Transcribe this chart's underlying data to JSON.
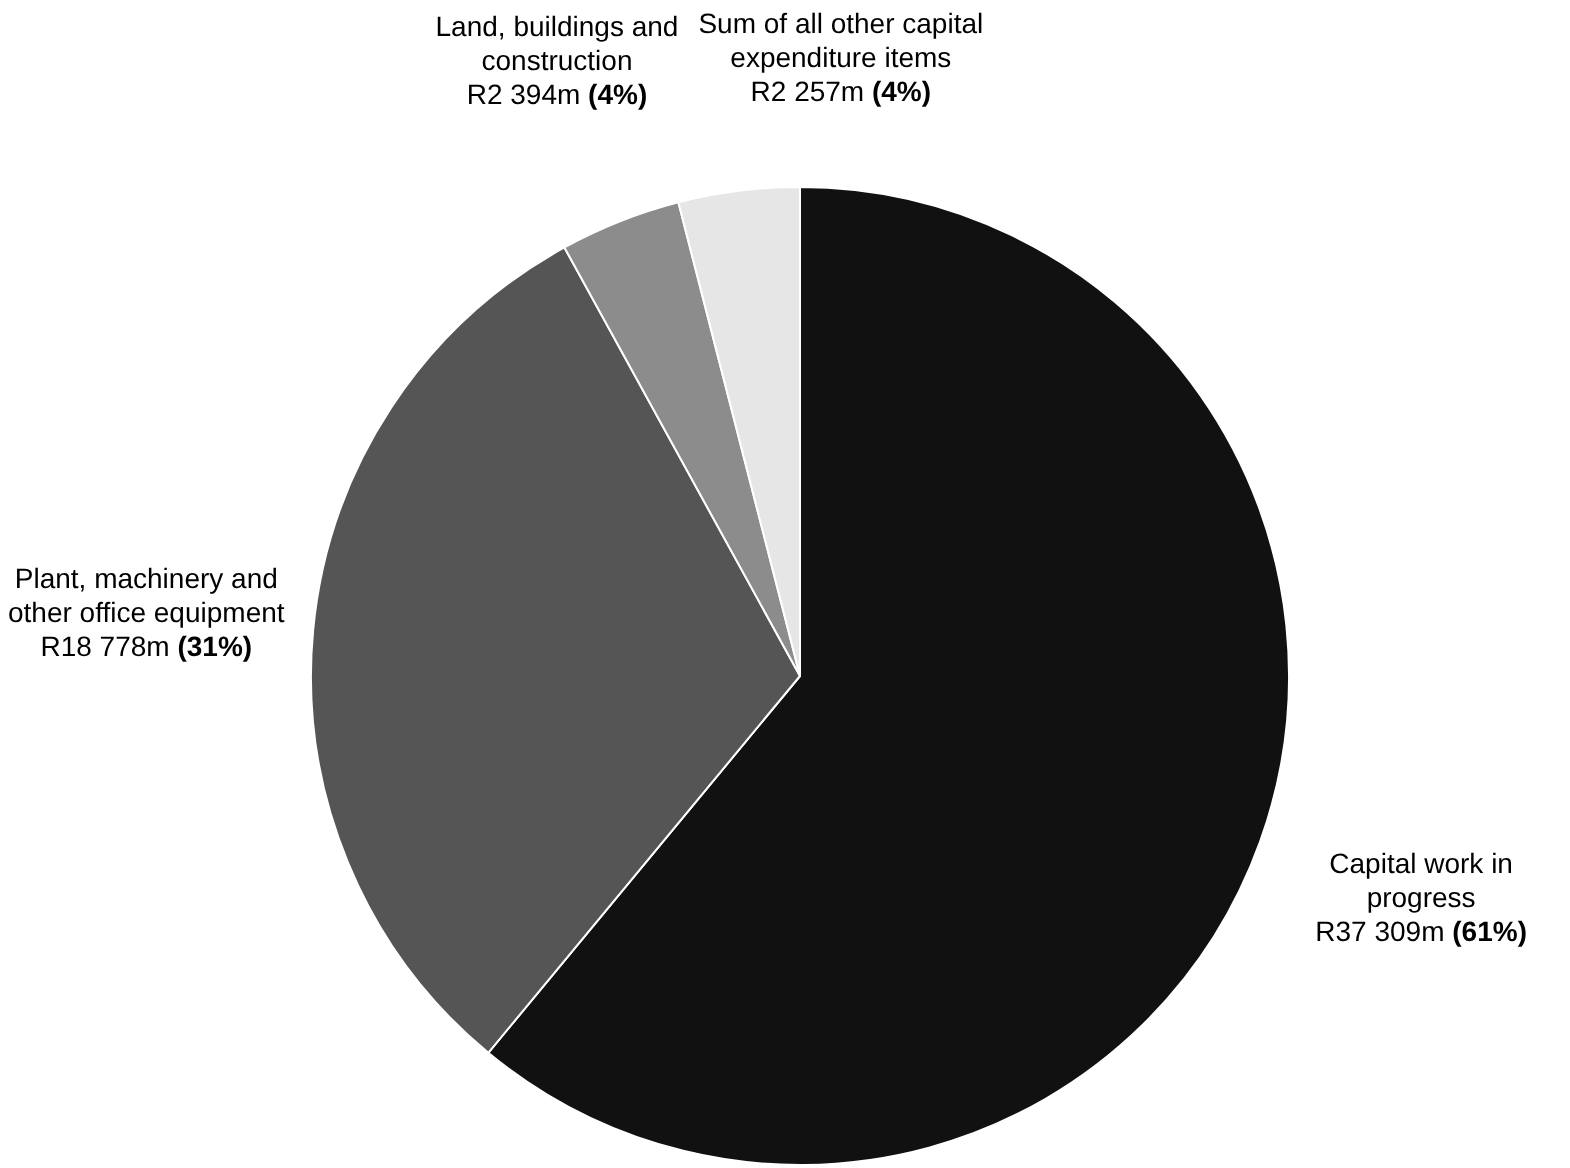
{
  "chart_data": {
    "type": "pie",
    "categories": [
      "Capital work in progress",
      "Plant, machinery and other office equipment",
      "Land, buildings and construction",
      "Sum of all other capital expenditure items"
    ],
    "values": [
      61,
      31,
      4,
      4
    ],
    "colors": [
      "#111111",
      "#555555",
      "#8c8c8c",
      "#e6e6e6"
    ],
    "value_labels": [
      "R37 309m (61%)",
      "R18 778m (31%)",
      "R2 394m (4%)",
      "R2 257m (4%)"
    ],
    "legend": false
  }
}
